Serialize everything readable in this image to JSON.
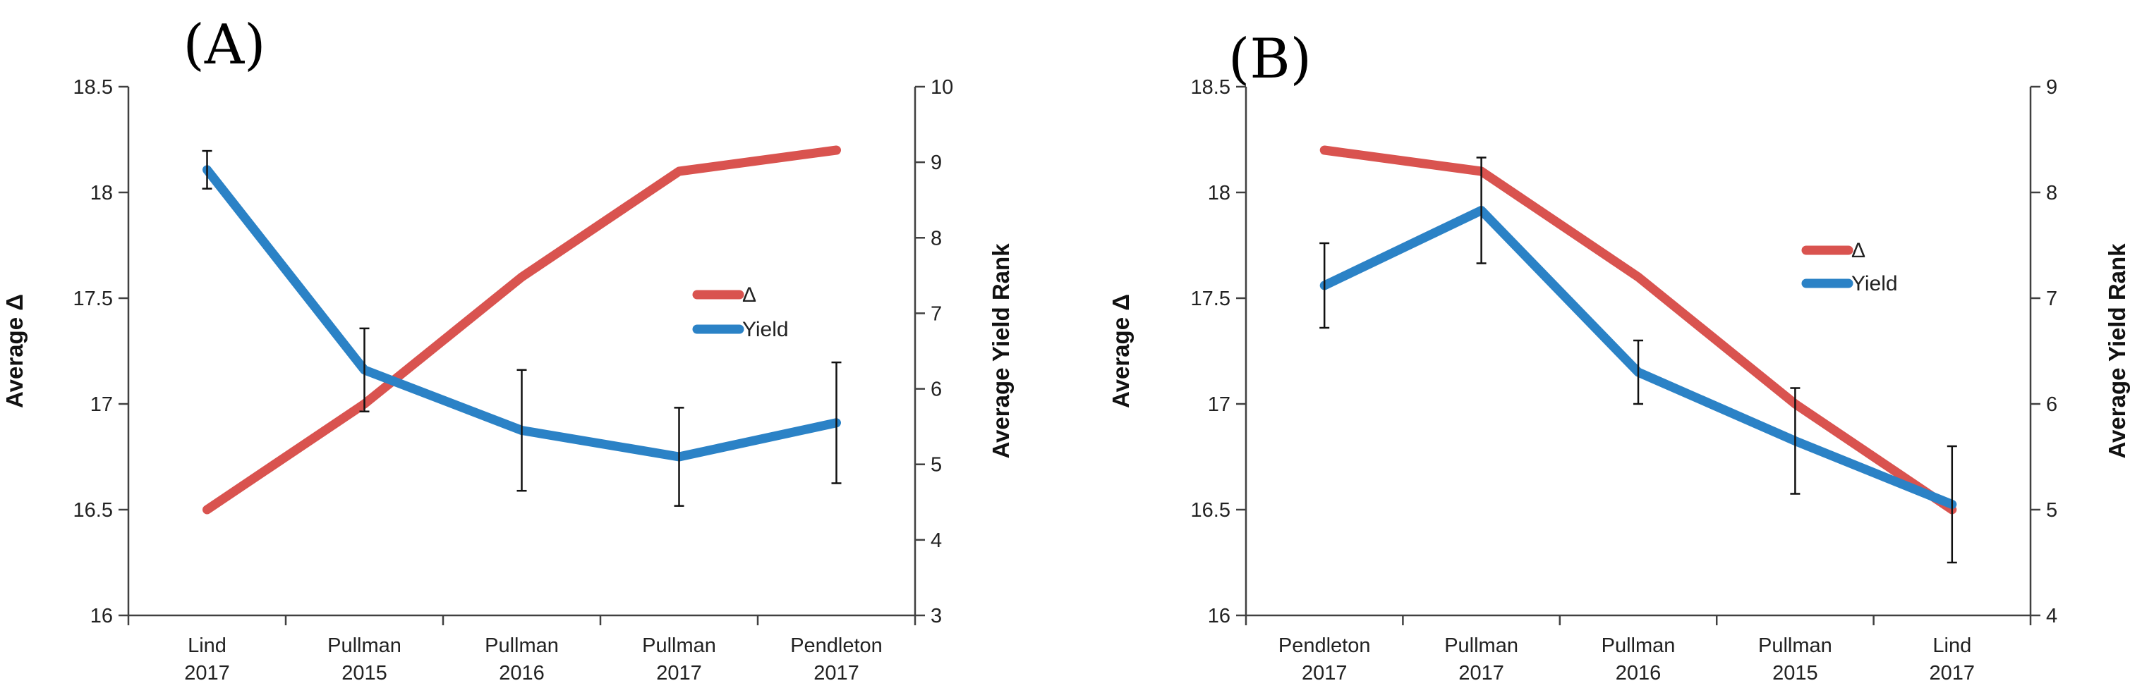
{
  "colors": {
    "delta": "#D9534F",
    "yield": "#2B82C6",
    "axis": "#404040",
    "error_bar": "#111111"
  },
  "legend": {
    "delta_label": "Δ",
    "yield_label": "Yield"
  },
  "chart_data": [
    {
      "type": "line",
      "panel_label": "(A)",
      "ylabel": "Average Δ",
      "y2label": "Average Yield Rank",
      "categories": [
        [
          "Lind",
          "2017"
        ],
        [
          "Pullman",
          "2015"
        ],
        [
          "Pullman",
          "2016"
        ],
        [
          "Pullman",
          "2017"
        ],
        [
          "Pendleton",
          "2017"
        ]
      ],
      "ylim": [
        16,
        18.5
      ],
      "yticks": [
        "16",
        "16.5",
        "17",
        "17.5",
        "18",
        "18.5"
      ],
      "y2lim": [
        3,
        10
      ],
      "y2ticks": [
        "3",
        "4",
        "5",
        "6",
        "7",
        "8",
        "9",
        "10"
      ],
      "series": [
        {
          "name": "Δ",
          "axis": "left",
          "values": [
            16.5,
            17.0,
            17.6,
            18.1,
            18.2
          ]
        },
        {
          "name": "Yield",
          "axis": "right",
          "values": [
            8.9,
            6.25,
            5.45,
            5.1,
            5.55
          ],
          "error": [
            0.25,
            0.55,
            0.8,
            0.65,
            0.8
          ]
        }
      ],
      "legend_position": "right-middle"
    },
    {
      "type": "line",
      "panel_label": "(B)",
      "ylabel": "Average Δ",
      "y2label": "Average Yield Rank",
      "categories": [
        [
          "Pendleton",
          "2017"
        ],
        [
          "Pullman",
          "2017"
        ],
        [
          "Pullman",
          "2016"
        ],
        [
          "Pullman",
          "2015"
        ],
        [
          "Lind",
          "2017"
        ]
      ],
      "ylim": [
        16,
        18.5
      ],
      "yticks": [
        "16",
        "16.5",
        "17",
        "17.5",
        "18",
        "18.5"
      ],
      "y2lim": [
        4,
        9
      ],
      "y2ticks": [
        "4",
        "5",
        "6",
        "7",
        "8",
        "9"
      ],
      "series": [
        {
          "name": "Δ",
          "axis": "left",
          "values": [
            18.2,
            18.1,
            17.6,
            17.0,
            16.5
          ]
        },
        {
          "name": "Yield",
          "axis": "right",
          "values": [
            7.12,
            7.83,
            6.3,
            5.65,
            5.05
          ],
          "error": [
            0.4,
            0.5,
            0.3,
            0.5,
            0.55
          ]
        }
      ],
      "legend_position": "right-middle"
    }
  ]
}
